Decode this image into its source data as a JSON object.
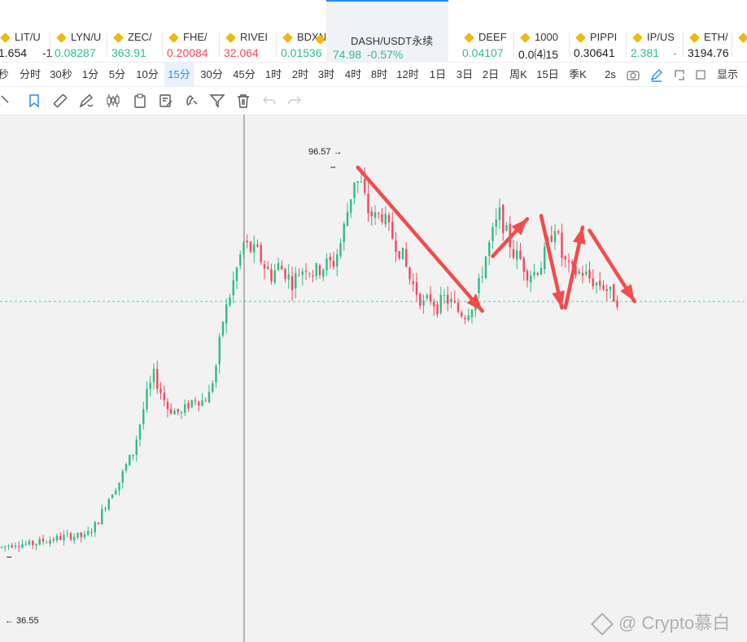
{
  "tickers": [
    {
      "name": "LIT/U",
      "price": "1.654",
      "change": "-1",
      "trend": "neutral"
    },
    {
      "name": "LYN/U",
      "price": "0.08287",
      "change": "",
      "trend": "up"
    },
    {
      "name": "ZEC/",
      "price": "363.91",
      "change": "",
      "trend": "up"
    },
    {
      "name": "FHE/",
      "price": "0.20084",
      "change": "",
      "trend": "down"
    },
    {
      "name": "RIVEI",
      "price": "32.064",
      "change": "",
      "trend": "down"
    },
    {
      "name": "BDXN",
      "price": "0.01536",
      "change": "",
      "trend": "up"
    },
    {
      "name": "DASH/USDT永续",
      "price": "74.98",
      "change": "-0.57%",
      "trend": "up"
    },
    {
      "name": "DEEF",
      "price": "0.04107",
      "change": "",
      "trend": "up"
    },
    {
      "name": "1000",
      "price": "0.0⑷15",
      "change": "",
      "trend": "neutral"
    },
    {
      "name": "PIPPI",
      "price": "0.30641",
      "change": "",
      "trend": "neutral"
    },
    {
      "name": "IP/US",
      "price": "2.381",
      "change": "-",
      "trend": "up"
    },
    {
      "name": "ETH/",
      "price": "3194.76",
      "change": "",
      "trend": "neutral"
    },
    {
      "name": "",
      "price": "",
      "change": "",
      "trend": "up"
    }
  ],
  "intervals": [
    "秒",
    "分时",
    "30秒",
    "1分",
    "5分",
    "10分",
    "15分",
    "30分",
    "45分",
    "1时",
    "2时",
    "3时",
    "4时",
    "8时",
    "12时",
    "1日",
    "3日",
    "2日",
    "周K",
    "15日",
    "季K"
  ],
  "active_interval": "15分",
  "refresh_label": "2s",
  "display_label": "显示",
  "icons": {
    "tools": [
      "pin-icon",
      "bookmark-icon",
      "ruler-icon",
      "pencil-icon",
      "candlestick-icon",
      "clipboard-icon",
      "edit-note-icon",
      "magnet-icon",
      "filter-icon",
      "trash-icon",
      "undo-icon",
      "redo-icon"
    ],
    "right": [
      "camera-icon",
      "draw-icon",
      "window-icon",
      "fullscreen-icon"
    ]
  },
  "colors": {
    "up": "#2ebd85",
    "down": "#f6465d",
    "accent": "#2a8bf2",
    "annotation": "#f24c4c"
  },
  "chart_data": {
    "type": "candlestick",
    "symbol": "DASH/USDT永续",
    "interval": "15分",
    "high_marker": 96.57,
    "low_marker": 36.55,
    "last_price_line": 74.98,
    "ylim": [
      22.1,
      104
    ],
    "trend": [
      [
        0,
        36.8
      ],
      [
        4,
        37.5
      ],
      [
        8,
        37.2
      ],
      [
        12,
        37.8
      ],
      [
        16,
        38.2
      ],
      [
        20,
        38.6
      ],
      [
        24,
        38.4
      ],
      [
        26,
        39.5
      ],
      [
        28,
        41.0
      ],
      [
        30,
        43.5
      ],
      [
        32,
        45.5
      ],
      [
        34,
        47.0
      ],
      [
        36,
        49.5
      ],
      [
        38,
        51.5
      ],
      [
        40,
        56
      ],
      [
        42,
        60.5
      ],
      [
        44,
        63.5
      ],
      [
        46,
        61.0
      ],
      [
        48,
        58.5
      ],
      [
        50,
        58.0
      ],
      [
        52,
        57.5
      ],
      [
        54,
        59.0
      ],
      [
        56,
        60.0
      ],
      [
        58,
        59.5
      ],
      [
        60,
        60.5
      ],
      [
        62,
        65.0
      ],
      [
        64,
        72
      ],
      [
        66,
        76
      ],
      [
        68,
        80
      ],
      [
        70,
        84
      ],
      [
        72,
        83
      ],
      [
        74,
        82.5
      ],
      [
        76,
        80.5
      ],
      [
        78,
        79
      ],
      [
        80,
        80.5
      ],
      [
        82,
        79.5
      ],
      [
        84,
        78
      ],
      [
        86,
        79.5
      ],
      [
        88,
        80.5
      ],
      [
        90,
        79.5
      ],
      [
        92,
        80
      ],
      [
        94,
        80.8
      ],
      [
        96,
        81
      ],
      [
        98,
        84
      ],
      [
        100,
        89
      ],
      [
        102,
        94
      ],
      [
        104,
        93
      ],
      [
        106,
        89
      ],
      [
        108,
        88
      ],
      [
        110,
        88.5
      ],
      [
        112,
        86
      ],
      [
        114,
        84
      ],
      [
        116,
        82
      ],
      [
        118,
        78.5
      ],
      [
        120,
        76.5
      ],
      [
        122,
        74.5
      ],
      [
        124,
        75.5
      ],
      [
        126,
        74.2
      ],
      [
        128,
        75.5
      ],
      [
        130,
        74.8
      ],
      [
        132,
        73.5
      ],
      [
        134,
        73
      ],
      [
        136,
        74.5
      ],
      [
        138,
        77.5
      ],
      [
        140,
        82
      ],
      [
        142,
        85.5
      ],
      [
        144,
        88.5
      ],
      [
        146,
        85.5
      ],
      [
        148,
        82.5
      ],
      [
        150,
        81.5
      ],
      [
        152,
        79.5
      ],
      [
        154,
        79.5
      ],
      [
        156,
        80.8
      ],
      [
        158,
        83.8
      ],
      [
        160,
        87
      ],
      [
        162,
        82
      ],
      [
        164,
        80
      ],
      [
        166,
        79.5
      ],
      [
        168,
        79.5
      ],
      [
        170,
        78.5
      ],
      [
        172,
        77.8
      ],
      [
        174,
        77.5
      ],
      [
        176,
        76.2
      ],
      [
        178,
        75.3
      ]
    ],
    "arrows": [
      {
        "from": [
          103,
          95.8
        ],
        "to": [
          139,
          73.5
        ]
      },
      {
        "from": [
          142,
          82
        ],
        "to": [
          152,
          87.8
        ]
      },
      {
        "from": [
          156,
          88.3
        ],
        "to": [
          162,
          74.0
        ]
      },
      {
        "from": [
          163,
          74.0
        ],
        "to": [
          168,
          86.5
        ]
      },
      {
        "from": [
          170,
          86.0
        ],
        "to": [
          183,
          75.0
        ]
      }
    ]
  },
  "watermark": "@ Crypto慕白"
}
